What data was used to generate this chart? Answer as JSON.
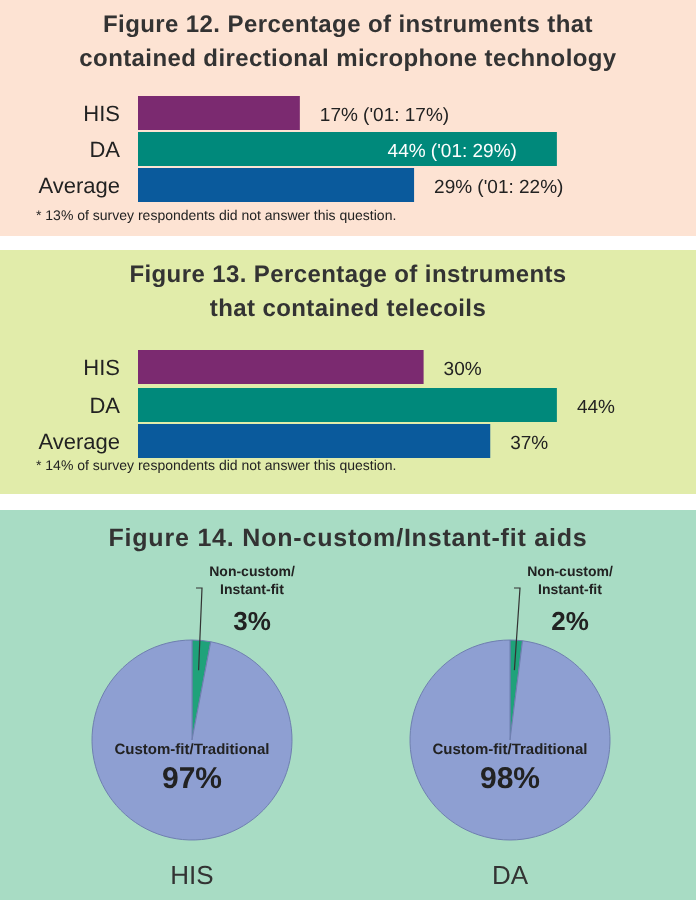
{
  "chart_data": [
    {
      "type": "bar",
      "orientation": "horizontal",
      "title": "Figure 12. Percentage of instruments that contained directional microphone technology",
      "categories": [
        "HIS",
        "DA",
        "Average"
      ],
      "values": [
        17,
        44,
        29
      ],
      "colors": [
        "#7b2a70",
        "#00897b",
        "#0a5a9c"
      ],
      "value_labels": [
        "17% ('01: 17%)",
        "44% ('01: 29%)",
        "29% ('01: 22%)"
      ],
      "annotations": [
        "* 13% of survey respondents did not answer this question."
      ]
    },
    {
      "type": "bar",
      "orientation": "horizontal",
      "title": "Figure 13. Percentage of instruments that contained telecoils",
      "categories": [
        "HIS",
        "DA",
        "Average"
      ],
      "values": [
        30,
        44,
        37
      ],
      "colors": [
        "#7b2a70",
        "#00897b",
        "#0a5a9c"
      ],
      "value_labels": [
        "30%",
        "44%",
        "37%"
      ],
      "annotations": [
        "* 14% of survey respondents did not answer this question."
      ]
    },
    {
      "type": "pie",
      "title": "Figure 14. Non-custom/Instant-fit aids",
      "xlabel": "HIS",
      "categories": [
        "Non-custom/Instant-fit",
        "Custom-fit/Traditional"
      ],
      "values": [
        3,
        97
      ],
      "colors": [
        "#1fa27a",
        "#8e9fd2"
      ],
      "value_labels": [
        "3%",
        "97%"
      ]
    },
    {
      "type": "pie",
      "xlabel": "DA",
      "categories": [
        "Non-custom/Instant-fit",
        "Custom-fit/Traditional"
      ],
      "values": [
        2,
        98
      ],
      "colors": [
        "#1fa27a",
        "#8e9fd2"
      ],
      "value_labels": [
        "2%",
        "98%"
      ]
    }
  ]
}
